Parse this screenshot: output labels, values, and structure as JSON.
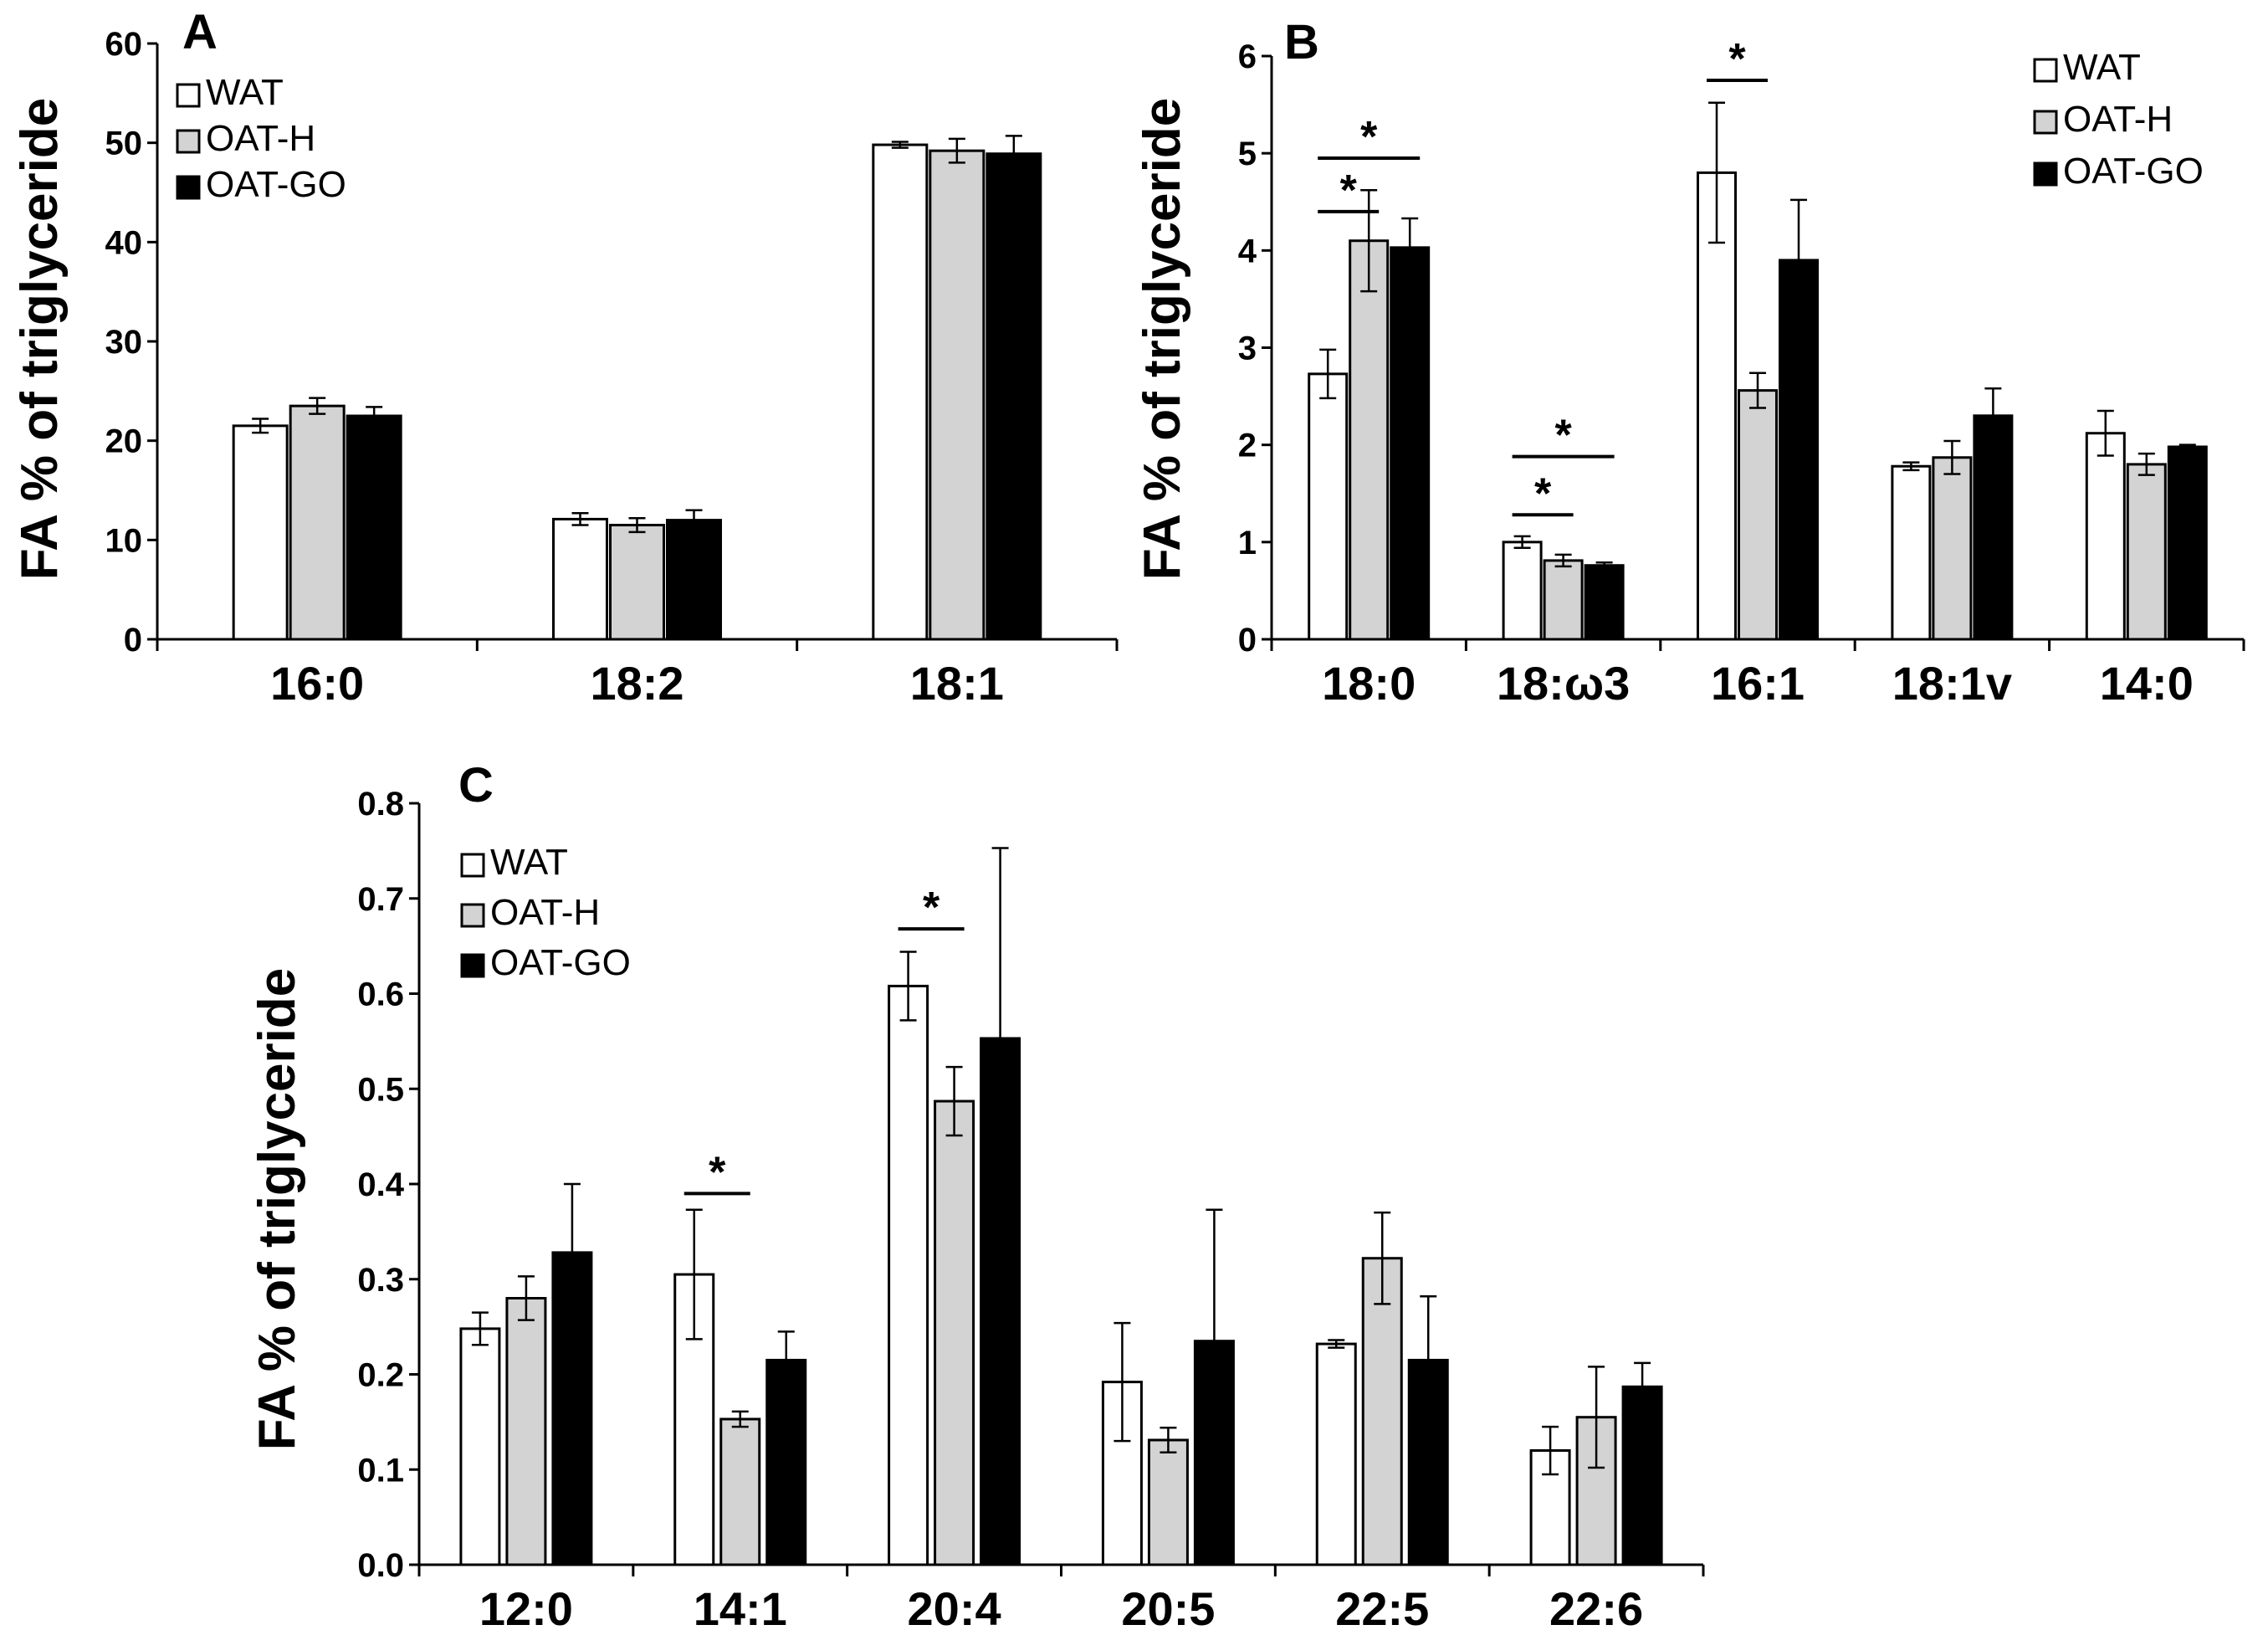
{
  "legend": [
    {
      "name": "WAT",
      "color": "#ffffff"
    },
    {
      "name": "OAT-H",
      "color": "#d3d3d3"
    },
    {
      "name": "OAT-GO",
      "color": "#000000"
    }
  ],
  "chart_data": [
    {
      "type": "bar",
      "panel": "A",
      "ylabel": "FA % of triglyceride",
      "xlabel": "",
      "ylim": [
        0,
        60
      ],
      "yticks": [
        "0",
        "10",
        "20",
        "30",
        "40",
        "50",
        "60"
      ],
      "categories": [
        "16:0",
        "18:2",
        "18:1"
      ],
      "series": [
        {
          "name": "WAT",
          "values": [
            21.5,
            12.1,
            49.8
          ],
          "errors": [
            0.7,
            0.6,
            0.3
          ]
        },
        {
          "name": "OAT-H",
          "values": [
            23.5,
            11.5,
            49.2
          ],
          "errors": [
            0.8,
            0.7,
            1.2
          ]
        },
        {
          "name": "OAT-GO",
          "values": [
            22.5,
            12.0,
            48.9
          ],
          "errors": [
            0.9,
            1.0,
            1.8
          ]
        }
      ],
      "significance": []
    },
    {
      "type": "bar",
      "panel": "B",
      "ylabel": "FA % of triglyceride",
      "xlabel": "",
      "ylim": [
        0,
        6
      ],
      "yticks": [
        "0",
        "1",
        "2",
        "3",
        "4",
        "5",
        "6"
      ],
      "categories": [
        "18:0",
        "18:ω3",
        "16:1",
        "18:1v",
        "14:0"
      ],
      "series": [
        {
          "name": "WAT",
          "values": [
            2.73,
            1.0,
            4.8,
            1.78,
            2.12
          ],
          "errors": [
            0.25,
            0.06,
            0.72,
            0.04,
            0.23
          ]
        },
        {
          "name": "OAT-H",
          "values": [
            4.1,
            0.81,
            2.56,
            1.87,
            1.8
          ],
          "errors": [
            0.52,
            0.06,
            0.18,
            0.17,
            0.11
          ]
        },
        {
          "name": "OAT-GO",
          "values": [
            4.03,
            0.76,
            3.9,
            2.3,
            1.98
          ],
          "errors": [
            0.3,
            0.03,
            0.62,
            0.28,
            0.02
          ]
        }
      ],
      "significance": [
        {
          "category": 0,
          "from": 0,
          "to": 1,
          "label": "*",
          "y": 4.4
        },
        {
          "category": 0,
          "from": 0,
          "to": 2,
          "label": "*",
          "y": 4.95
        },
        {
          "category": 1,
          "from": 0,
          "to": 1,
          "label": "*",
          "y": 1.28
        },
        {
          "category": 1,
          "from": 0,
          "to": 2,
          "label": "*",
          "y": 1.88
        },
        {
          "category": 2,
          "from": 0,
          "to": 1,
          "label": "*",
          "y": 5.75
        }
      ]
    },
    {
      "type": "bar",
      "panel": "C",
      "ylabel": "FA % of triglyceride",
      "xlabel": "",
      "ylim": [
        0,
        0.8
      ],
      "yticks": [
        "0.0",
        "0.1",
        "0.2",
        "0.3",
        "0.4",
        "0.5",
        "0.6",
        "0.7",
        "0.8"
      ],
      "categories": [
        "12:0",
        "14:1",
        "20:4",
        "20:5",
        "22:5",
        "22:6"
      ],
      "series": [
        {
          "name": "WAT",
          "values": [
            0.248,
            0.305,
            0.608,
            0.192,
            0.232,
            0.12
          ],
          "errors": [
            0.017,
            0.068,
            0.036,
            0.062,
            0.004,
            0.025
          ]
        },
        {
          "name": "OAT-H",
          "values": [
            0.28,
            0.153,
            0.487,
            0.131,
            0.322,
            0.155
          ],
          "errors": [
            0.023,
            0.008,
            0.036,
            0.013,
            0.048,
            0.053
          ]
        },
        {
          "name": "OAT-GO",
          "values": [
            0.328,
            0.215,
            0.553,
            0.235,
            0.215,
            0.187
          ],
          "errors": [
            0.072,
            0.03,
            0.2,
            0.138,
            0.067,
            0.025
          ]
        }
      ],
      "significance": [
        {
          "category": 1,
          "from": 0,
          "to": 1,
          "label": "*",
          "y": 0.39
        },
        {
          "category": 2,
          "from": 0,
          "to": 1,
          "label": "*",
          "y": 0.668
        }
      ]
    }
  ]
}
